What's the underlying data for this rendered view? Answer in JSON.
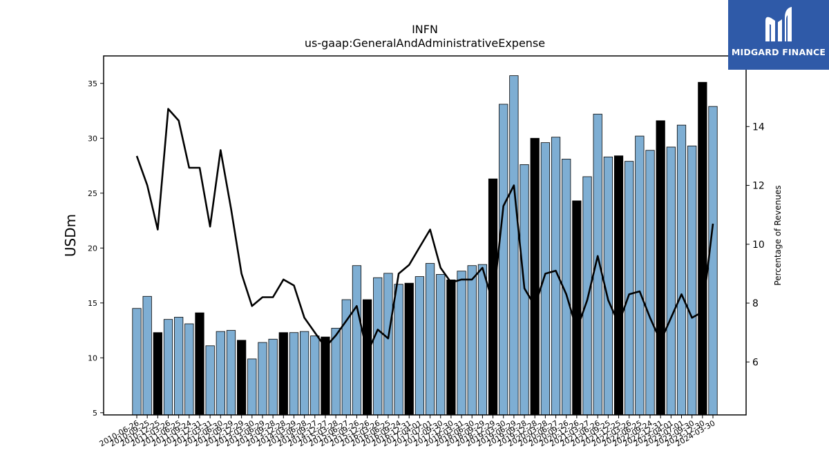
{
  "chart_data": {
    "type": "bar",
    "title": "INFN",
    "subtitle": "us-gaap:GeneralAndAdministrativeExpense",
    "ylabel": "USDm",
    "y2label": "Percentage of Revenues",
    "ylim": [
      4.8,
      37.5
    ],
    "y2lim": [
      4.2,
      16.4
    ],
    "yticks": [
      5,
      10,
      15,
      20,
      25,
      30,
      35
    ],
    "y2ticks": [
      6,
      8,
      10,
      12,
      14
    ],
    "bar_color": "#7eaed3",
    "highlight_color": "#000000",
    "line_color": "#000000",
    "categories": [
      "2010-06-26",
      "2010-09-25",
      "2010-12-25",
      "2011-03-26",
      "2011-06-25",
      "2011-09-24",
      "2011-12-31",
      "2012-03-31",
      "2012-06-30",
      "2012-09-29",
      "2012-12-29",
      "2013-03-30",
      "2013-06-29",
      "2013-09-28",
      "2013-12-28",
      "2014-03-29",
      "2014-06-28",
      "2014-09-27",
      "2014-12-27",
      "2015-03-28",
      "2015-06-27",
      "2015-09-26",
      "2015-12-26",
      "2016-03-26",
      "2016-06-25",
      "2016-09-24",
      "2016-12-31",
      "2017-04-01",
      "2017-07-01",
      "2017-09-30",
      "2017-12-30",
      "2018-03-31",
      "2018-06-30",
      "2018-09-29",
      "2018-12-29",
      "2019-03-30",
      "2019-06-29",
      "2019-09-28",
      "2019-12-28",
      "2020-03-28",
      "2020-06-27",
      "2020-09-26",
      "2020-12-26",
      "2021-03-27",
      "2021-06-26",
      "2021-09-25",
      "2021-12-25",
      "2022-03-26",
      "2022-06-25",
      "2022-09-24",
      "2022-12-31",
      "2023-04-01",
      "2023-07-01",
      "2023-09-30",
      "2023-12-30",
      "2024-03-30"
    ],
    "visible_tick_labels": [
      "2010-06-26",
      "2010-09-25",
      "2010-12-25",
      "2011-03-26",
      "2011-06-25",
      "2011-09-24",
      "2011-12-31",
      "2012-03-31",
      "2012-06-30",
      "2012-09-29",
      "2012-12-29",
      "2013-03-30",
      "2013-06-29",
      "2013-09-28",
      "2013-12-28",
      "2014-03-29",
      "2014-06-28",
      "2014-09-27",
      "2014-12-27",
      "2015-03-28",
      "2015-06-27",
      "2015-09-26",
      "2015-12-26",
      "2016-03-26",
      "2016-06-25",
      "2016-09-24",
      "2016-12-31",
      "2017-04-01",
      "2017-07-01",
      "2017-09-30",
      "2017-12-30",
      "2018-03-31",
      "2018-06-30",
      "2018-09-29",
      "2018-12-29",
      "2019-03-30",
      "2019-06-29",
      "2019-09-28",
      "2019-12-28",
      "2020-03-28",
      "2020-06-27",
      "2020-09-26",
      "2020-12-26",
      "2021-03-27",
      "2021-06-26",
      "2021-09-25",
      "2021-12-25",
      "2022-03-26",
      "2022-06-25",
      "2022-09-24",
      "2022-12-31",
      "2023-04-01",
      "2023-07-01",
      "2023-09-30",
      "2023-12-30",
      "2024-03-30"
    ],
    "series": [
      {
        "values": [
          14.5,
          15.6,
          12.3,
          13.5,
          13.7,
          13.1,
          14.1,
          11.1,
          12.4,
          12.5,
          11.6,
          9.9,
          11.4,
          11.7,
          12.3,
          12.3,
          12.4,
          12.0,
          11.9,
          12.7,
          15.3,
          18.4,
          15.3,
          17.3,
          17.7,
          16.7,
          16.8,
          17.4,
          18.6,
          17.6,
          17.1,
          17.9,
          18.4,
          18.5,
          26.3,
          33.1,
          35.7,
          27.6,
          30.0,
          29.6,
          30.1,
          28.1,
          24.3,
          26.5,
          32.2,
          28.3,
          28.4,
          27.9,
          30.2,
          28.9,
          31.6,
          29.2,
          31.2,
          29.3,
          35.1,
          32.9
        ],
        "highlight": [
          false,
          false,
          true,
          false,
          false,
          false,
          true,
          false,
          false,
          false,
          true,
          false,
          false,
          false,
          true,
          false,
          false,
          false,
          true,
          false,
          false,
          false,
          true,
          false,
          false,
          false,
          true,
          false,
          false,
          false,
          true,
          false,
          false,
          false,
          true,
          false,
          false,
          false,
          true,
          false,
          false,
          false,
          true,
          false,
          false,
          false,
          true,
          false,
          false,
          false,
          true,
          false,
          false,
          false,
          true,
          false
        ]
      },
      {
        "axis": "right",
        "type": "line",
        "values": [
          13.0,
          12.0,
          10.5,
          14.6,
          14.2,
          12.6,
          12.6,
          10.6,
          13.2,
          11.2,
          9.0,
          7.9,
          8.2,
          8.2,
          8.8,
          8.6,
          7.5,
          7.0,
          6.5,
          6.9,
          7.4,
          7.9,
          6.3,
          7.1,
          6.8,
          9.0,
          9.3,
          9.9,
          10.5,
          9.2,
          8.7,
          8.8,
          8.8,
          9.2,
          8.0,
          11.3,
          12.0,
          8.5,
          7.9,
          9.0,
          9.1,
          8.3,
          7.1,
          8.1,
          9.6,
          8.1,
          7.3,
          8.3,
          8.4,
          7.5,
          6.7,
          7.5,
          8.3,
          7.5,
          7.7,
          10.7
        ]
      }
    ]
  },
  "logo": {
    "text": "MIDGARD FINANCE",
    "background": "#2f5aa8"
  }
}
